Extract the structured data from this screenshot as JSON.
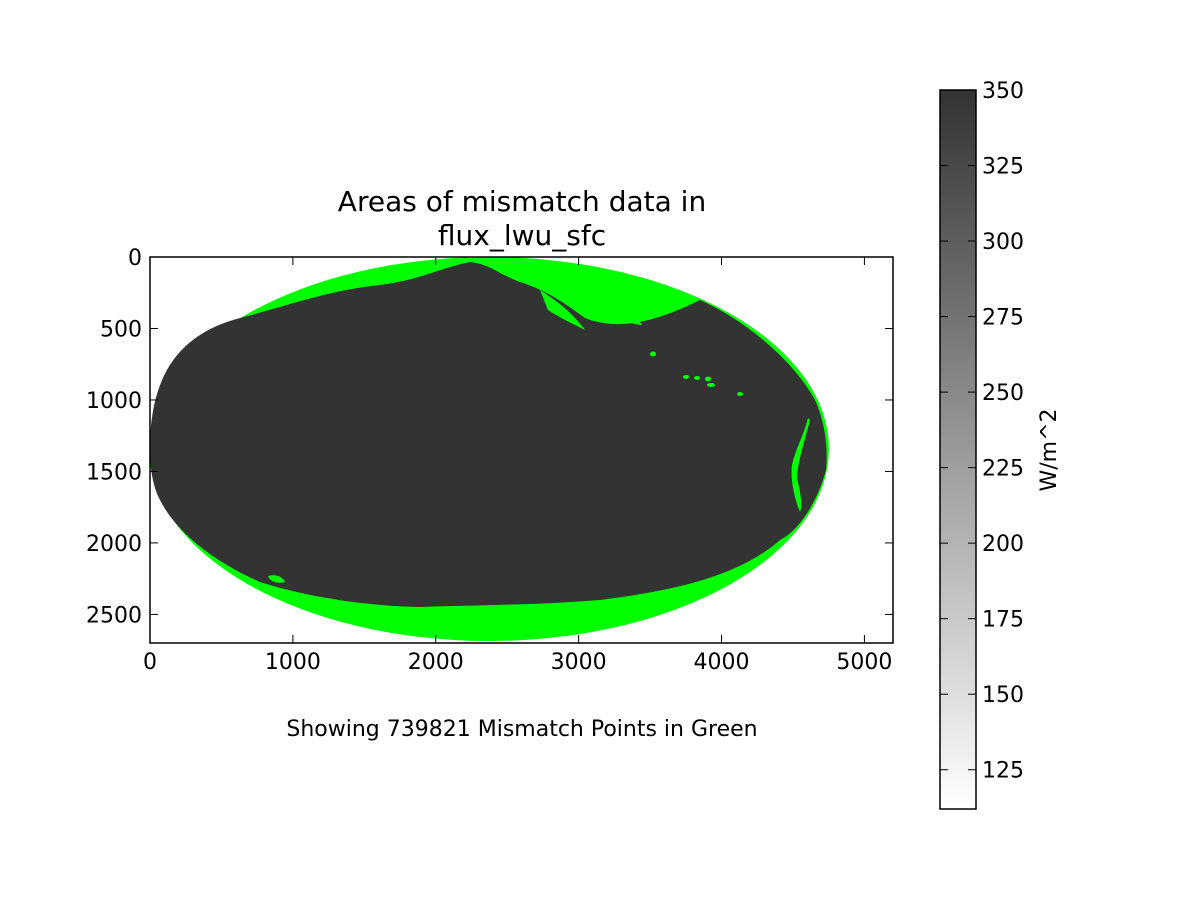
{
  "chart_data": {
    "type": "heatmap",
    "title_line1": "Areas of mismatch data in",
    "title_line2": "flux_lwu_sfc",
    "caption": "Showing 739821 Mismatch Points in Green",
    "xlabel": "",
    "ylabel": "",
    "xlim": [
      0,
      5200
    ],
    "ylim": [
      2700,
      0
    ],
    "x_ticks": [
      "0",
      "1000",
      "2000",
      "3000",
      "4000",
      "5000"
    ],
    "y_ticks": [
      "0",
      "500",
      "1000",
      "1500",
      "2000",
      "2500"
    ],
    "mismatch_count": 739821,
    "colors": {
      "data": "#333333",
      "mismatch": "#00ff00",
      "frame": "#000000"
    },
    "colorbar": {
      "label": "W/m^2",
      "range": [
        112,
        350
      ],
      "ticks": [
        "125",
        "150",
        "175",
        "200",
        "225",
        "250",
        "275",
        "300",
        "325",
        "350"
      ],
      "cmap": [
        "#ffffff",
        "#333333"
      ]
    }
  }
}
